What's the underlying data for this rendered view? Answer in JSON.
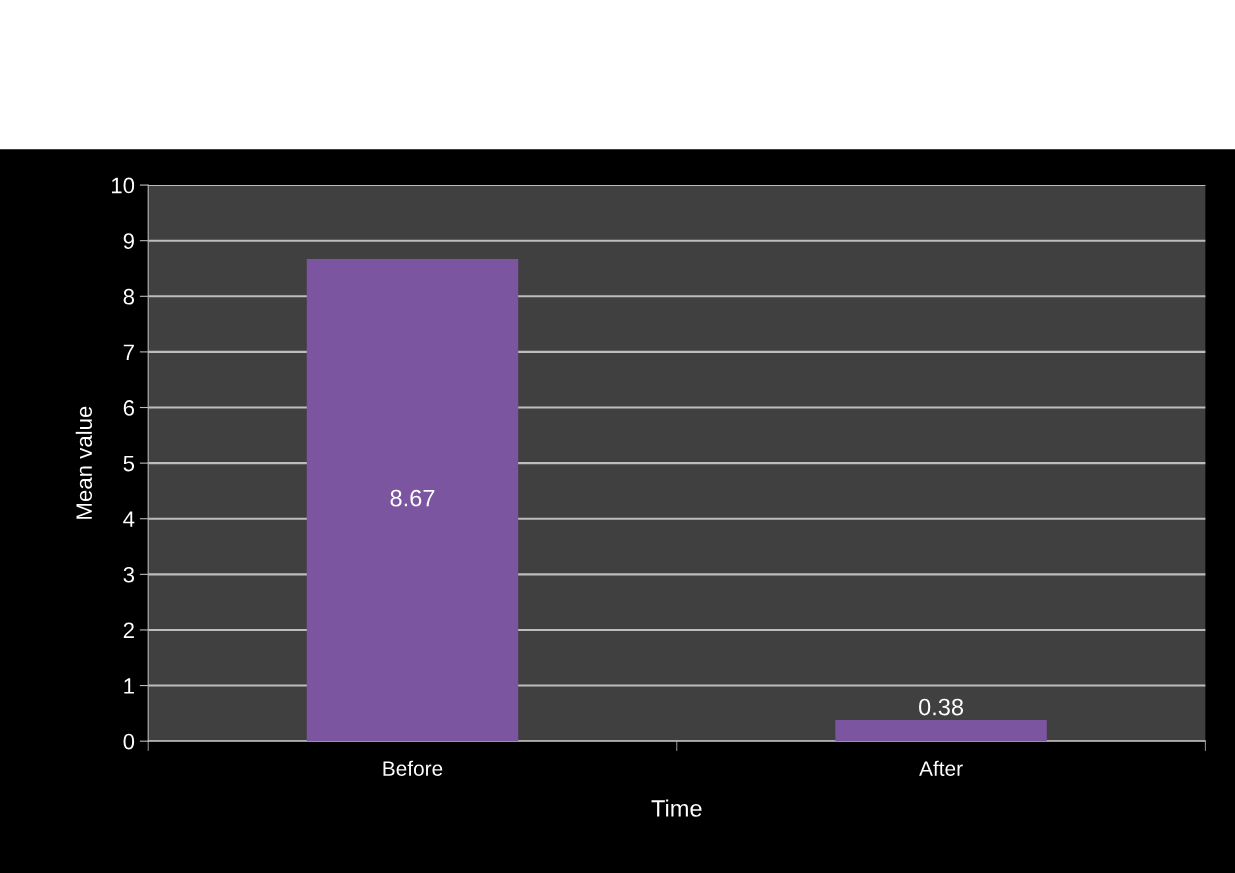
{
  "chart_data": {
    "type": "bar",
    "xlabel": "Time",
    "ylabel": "Mean value",
    "categories": [
      "Before",
      "After"
    ],
    "values": [
      8.67,
      0.38
    ],
    "color": "#7b55a0",
    "data_labels": true,
    "ylim": [
      0,
      10
    ],
    "yticks": [
      0,
      1,
      2,
      3,
      4,
      5,
      6,
      7,
      8,
      9,
      10
    ],
    "grid": "y",
    "legend": false
  }
}
